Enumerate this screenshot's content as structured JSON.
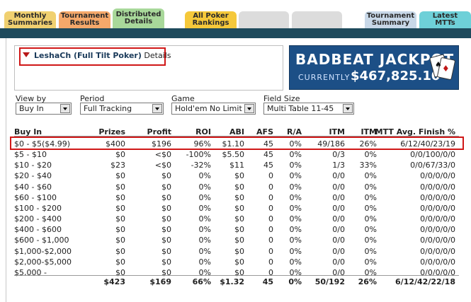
{
  "tabs": [
    {
      "l1": "Monthly",
      "l2": "Summaries"
    },
    {
      "l1": "Tournament",
      "l2": "Results"
    },
    {
      "l1": "Distributed",
      "l2": "Details"
    },
    {
      "l1": "All Poker",
      "l2": "Rankings"
    },
    {
      "l1": "Tournament",
      "l2": "Summary"
    },
    {
      "l1": "Latest",
      "l2": "MTTs"
    }
  ],
  "player": {
    "name": "LeshaCh (Full Tilt Poker)",
    "suffix": "Details"
  },
  "jackpot": {
    "title": "BADBEAT JACKPOT",
    "currently": "CURRENTLY",
    "amount": "$467,825.10"
  },
  "filters": {
    "view_by": {
      "label": "View by",
      "value": "Buy In"
    },
    "period": {
      "label": "Period",
      "value": "Full Tracking"
    },
    "game": {
      "label": "Game",
      "value": "Hold'em No Limit"
    },
    "field_size": {
      "label": "Field Size",
      "value": "Multi Table 11-45"
    }
  },
  "table": {
    "headers": [
      "Buy In",
      "Prizes",
      "Profit",
      "ROI",
      "ABI",
      "AFS",
      "R/A",
      "ITM",
      "ITM",
      "MTT Avg. Finish %"
    ],
    "rows": [
      [
        "$0 - $5($4.99)",
        "$400",
        "$196",
        "96%",
        "$1.10",
        "45",
        "0%",
        "49/186",
        "26%",
        "6/12/40/23/19"
      ],
      [
        "$5 - $10",
        "$0",
        "<$0",
        "-100%",
        "$5.50",
        "45",
        "0%",
        "0/3",
        "0%",
        "0/0/100/0/0"
      ],
      [
        "$10 - $20",
        "$23",
        "<$0",
        "-32%",
        "$11",
        "45",
        "0%",
        "1/3",
        "33%",
        "0/0/67/33/0"
      ],
      [
        "$20 - $40",
        "$0",
        "$0",
        "0%",
        "$0",
        "0",
        "0%",
        "0/0",
        "0%",
        "0/0/0/0/0"
      ],
      [
        "$40 - $60",
        "$0",
        "$0",
        "0%",
        "$0",
        "0",
        "0%",
        "0/0",
        "0%",
        "0/0/0/0/0"
      ],
      [
        "$60 - $100",
        "$0",
        "$0",
        "0%",
        "$0",
        "0",
        "0%",
        "0/0",
        "0%",
        "0/0/0/0/0"
      ],
      [
        "$100 - $200",
        "$0",
        "$0",
        "0%",
        "$0",
        "0",
        "0%",
        "0/0",
        "0%",
        "0/0/0/0/0"
      ],
      [
        "$200 - $400",
        "$0",
        "$0",
        "0%",
        "$0",
        "0",
        "0%",
        "0/0",
        "0%",
        "0/0/0/0/0"
      ],
      [
        "$400 - $600",
        "$0",
        "$0",
        "0%",
        "$0",
        "0",
        "0%",
        "0/0",
        "0%",
        "0/0/0/0/0"
      ],
      [
        "$600 - $1,000",
        "$0",
        "$0",
        "0%",
        "$0",
        "0",
        "0%",
        "0/0",
        "0%",
        "0/0/0/0/0"
      ],
      [
        "$1,000-$2,000",
        "$0",
        "$0",
        "0%",
        "$0",
        "0",
        "0%",
        "0/0",
        "0%",
        "0/0/0/0/0"
      ],
      [
        "$2,000-$5,000",
        "$0",
        "$0",
        "0%",
        "$0",
        "0",
        "0%",
        "0/0",
        "0%",
        "0/0/0/0/0"
      ],
      [
        "$5,000 -",
        "$0",
        "$0",
        "0%",
        "$0",
        "0",
        "0%",
        "0/0",
        "0%",
        "0/0/0/0/0"
      ]
    ],
    "totals": [
      "",
      "$423",
      "$169",
      "66%",
      "$1.32",
      "45",
      "0%",
      "50/192",
      "26%",
      "6/12/42/22/18"
    ]
  },
  "colors": {
    "dark_bar": "#1e4a5c",
    "highlight": "#d01818",
    "jackpot_bg": "#1c4f86"
  }
}
